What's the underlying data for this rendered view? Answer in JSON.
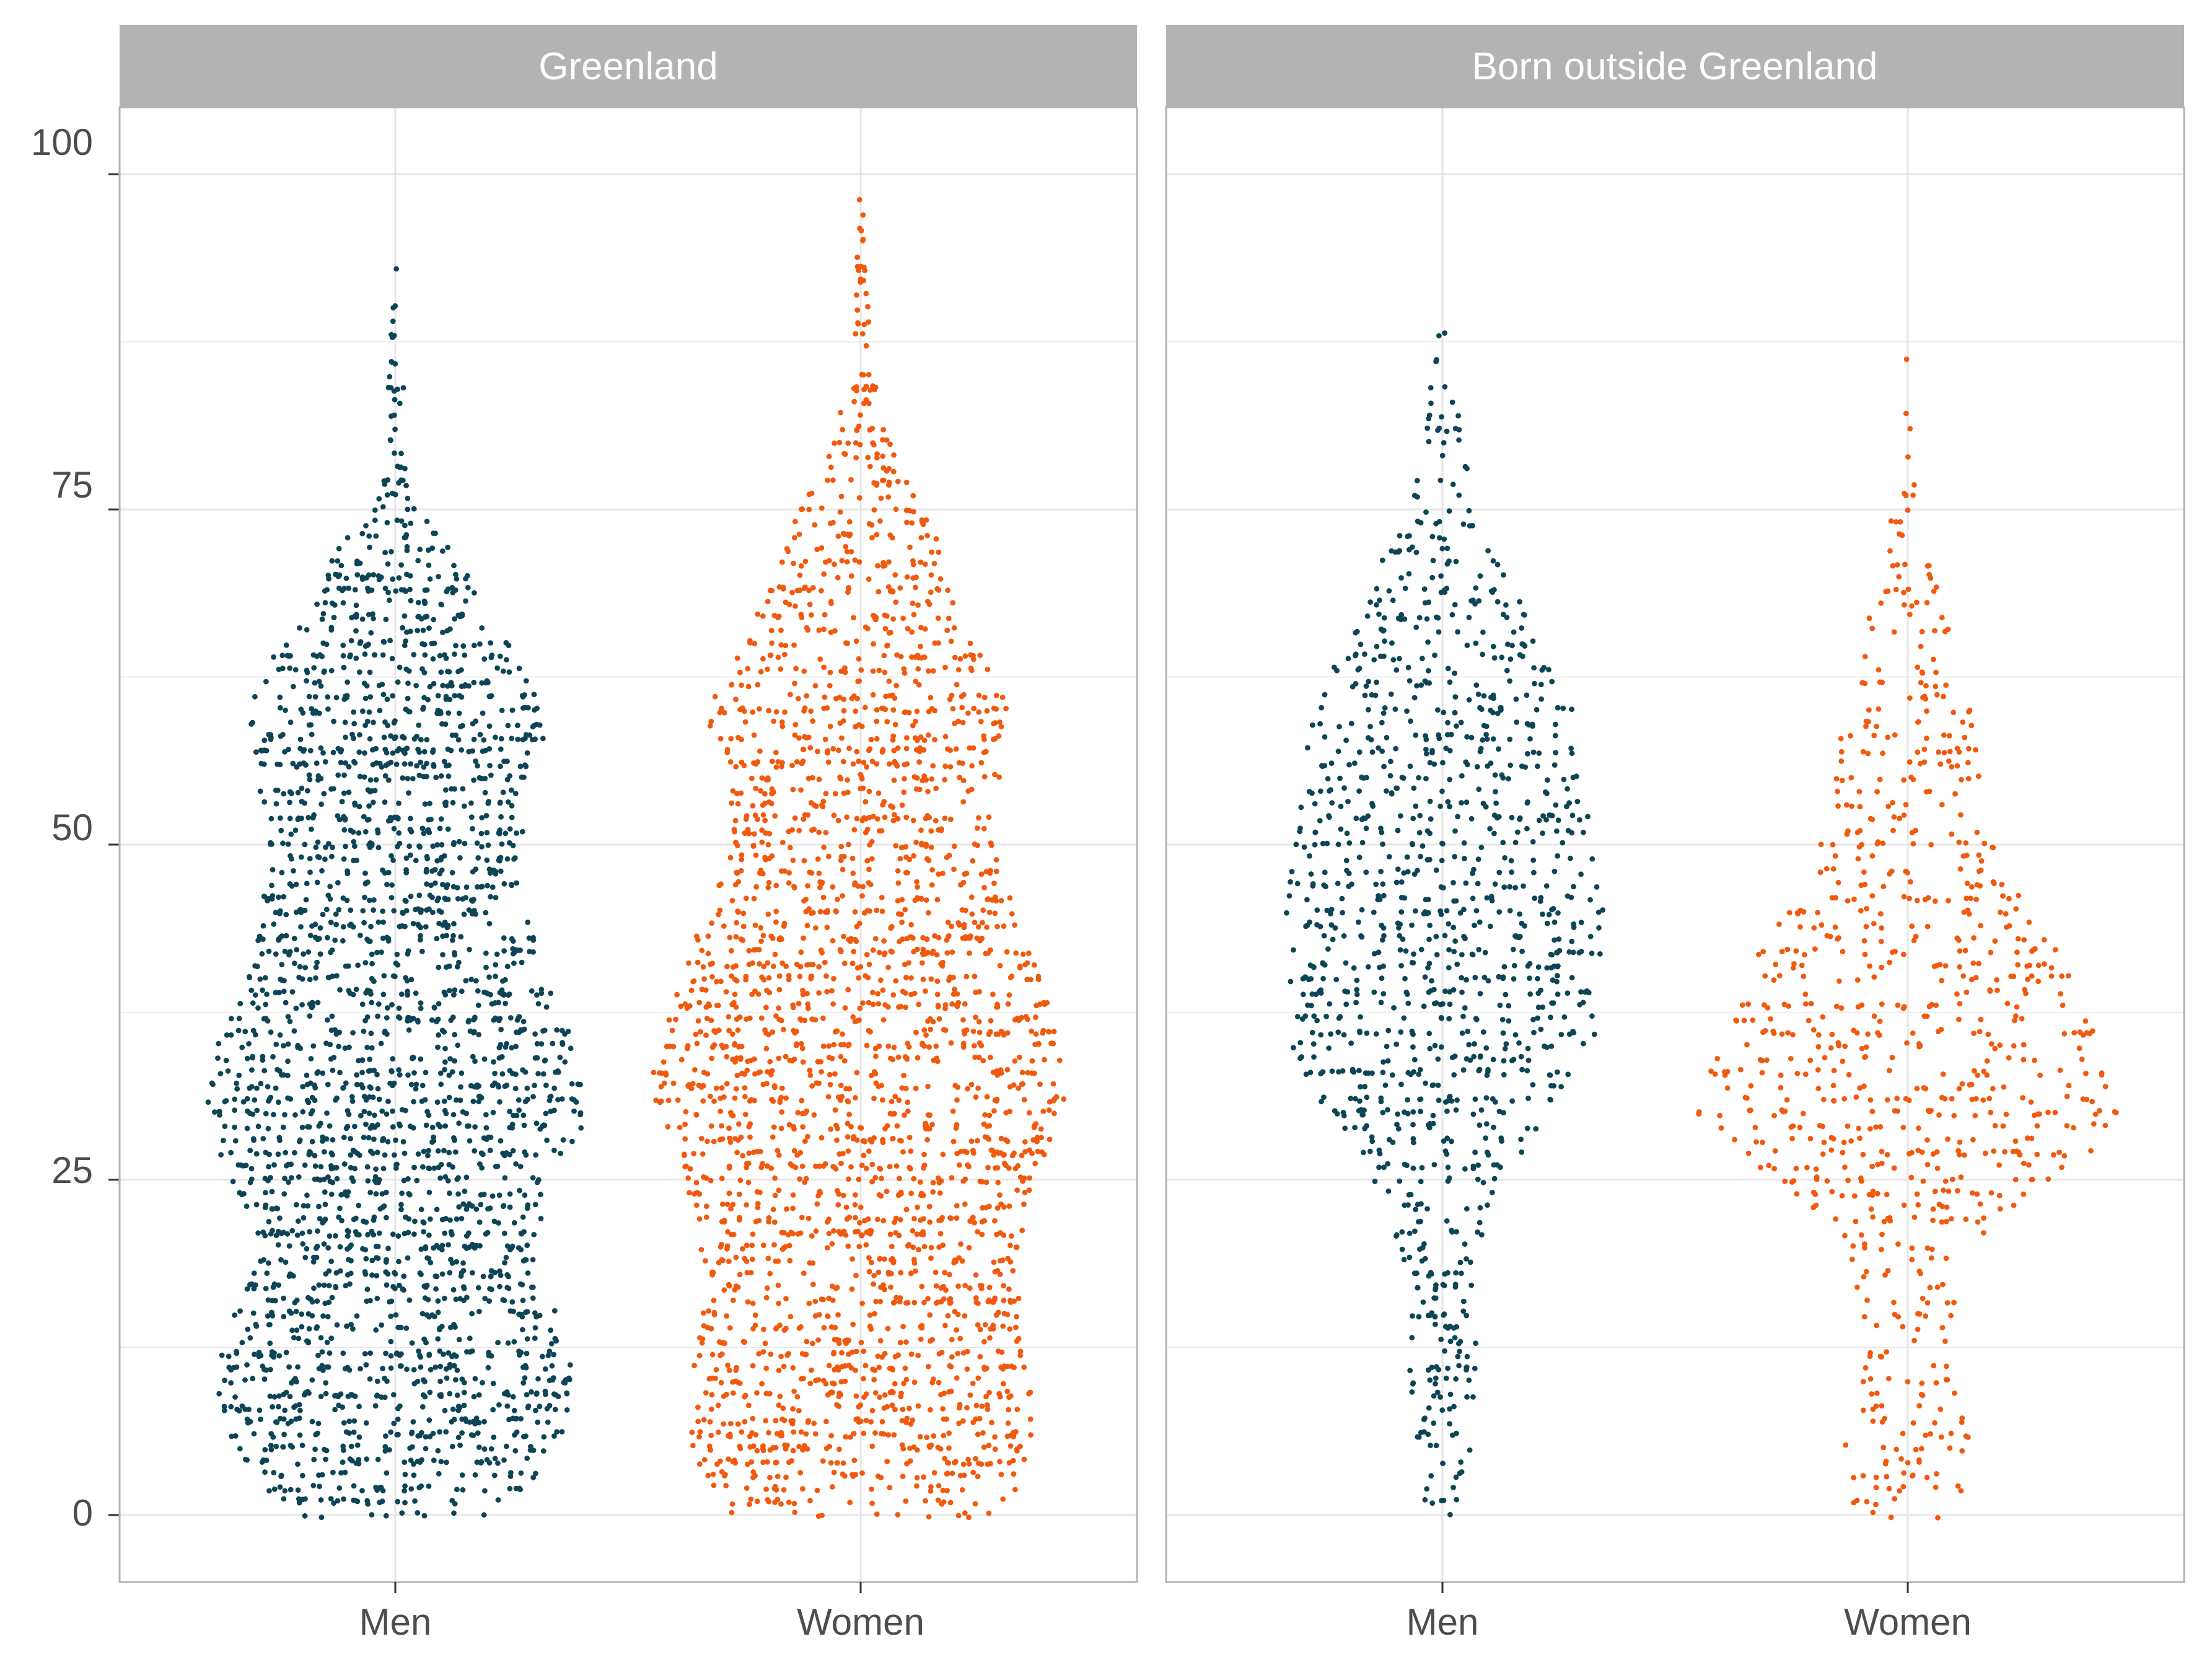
{
  "chart_data": {
    "type": "scatter",
    "subtype": "beeswarm",
    "y_ticks": [
      0,
      25,
      50,
      75,
      100
    ],
    "ylim": [
      -5,
      105
    ],
    "grid": true,
    "legend": "none",
    "colors": {
      "Men": "#0d4556",
      "Women": "#f05a0f"
    },
    "facets": [
      {
        "strip_label": "Greenland",
        "categories": [
          "Men",
          "Women"
        ],
        "groups": [
          {
            "category": "Men",
            "color": "#0d4556",
            "min": 0,
            "max": 94,
            "n_points": 2600,
            "density_profile": [
              [
                0,
                0.5
              ],
              [
                3,
                0.8
              ],
              [
                8,
                0.95
              ],
              [
                13,
                0.92
              ],
              [
                16,
                0.8
              ],
              [
                20,
                0.72
              ],
              [
                25,
                0.85
              ],
              [
                30,
                1.0
              ],
              [
                35,
                0.95
              ],
              [
                40,
                0.8
              ],
              [
                45,
                0.7
              ],
              [
                50,
                0.68
              ],
              [
                55,
                0.72
              ],
              [
                58,
                0.8
              ],
              [
                62,
                0.72
              ],
              [
                66,
                0.55
              ],
              [
                70,
                0.38
              ],
              [
                73,
                0.25
              ],
              [
                76,
                0.1
              ],
              [
                80,
                0.06
              ],
              [
                88,
                0.03
              ],
              [
                94,
                0.01
              ]
            ]
          },
          {
            "category": "Women",
            "color": "#f05a0f",
            "min": 0,
            "max": 98,
            "n_points": 2600,
            "density_profile": [
              [
                0,
                0.6
              ],
              [
                3,
                0.82
              ],
              [
                8,
                0.82
              ],
              [
                13,
                0.8
              ],
              [
                16,
                0.77
              ],
              [
                20,
                0.77
              ],
              [
                25,
                0.84
              ],
              [
                30,
                0.98
              ],
              [
                33,
                1.0
              ],
              [
                38,
                0.9
              ],
              [
                43,
                0.8
              ],
              [
                48,
                0.66
              ],
              [
                52,
                0.64
              ],
              [
                56,
                0.68
              ],
              [
                59,
                0.78
              ],
              [
                62,
                0.66
              ],
              [
                66,
                0.52
              ],
              [
                70,
                0.42
              ],
              [
                74,
                0.34
              ],
              [
                78,
                0.2
              ],
              [
                82,
                0.1
              ],
              [
                86,
                0.05
              ],
              [
                92,
                0.03
              ],
              [
                98,
                0.01
              ]
            ]
          }
        ]
      },
      {
        "strip_label": "Born outside Greenland",
        "categories": [
          "Men",
          "Women"
        ],
        "groups": [
          {
            "category": "Men",
            "color": "#0d4556",
            "min": 0,
            "max": 92,
            "n_points": 1150,
            "density_profile": [
              [
                0,
                0.1
              ],
              [
                5,
                0.18
              ],
              [
                10,
                0.22
              ],
              [
                15,
                0.22
              ],
              [
                20,
                0.28
              ],
              [
                25,
                0.4
              ],
              [
                30,
                0.72
              ],
              [
                35,
                0.95
              ],
              [
                40,
                0.96
              ],
              [
                45,
                1.0
              ],
              [
                50,
                0.92
              ],
              [
                55,
                0.88
              ],
              [
                60,
                0.8
              ],
              [
                65,
                0.6
              ],
              [
                70,
                0.4
              ],
              [
                75,
                0.2
              ],
              [
                80,
                0.12
              ],
              [
                86,
                0.06
              ],
              [
                92,
                0.01
              ]
            ]
          },
          {
            "category": "Women",
            "color": "#f05a0f",
            "min": 0,
            "max": 87,
            "n_points": 800,
            "density_profile": [
              [
                0,
                0.25
              ],
              [
                4,
                0.3
              ],
              [
                8,
                0.28
              ],
              [
                12,
                0.18
              ],
              [
                16,
                0.22
              ],
              [
                20,
                0.3
              ],
              [
                24,
                0.55
              ],
              [
                28,
                0.95
              ],
              [
                30,
                1.0
              ],
              [
                34,
                0.92
              ],
              [
                38,
                0.82
              ],
              [
                42,
                0.72
              ],
              [
                46,
                0.55
              ],
              [
                50,
                0.42
              ],
              [
                55,
                0.36
              ],
              [
                60,
                0.3
              ],
              [
                65,
                0.22
              ],
              [
                70,
                0.12
              ],
              [
                74,
                0.08
              ],
              [
                78,
                0.03
              ],
              [
                87,
                0.01
              ]
            ]
          }
        ]
      }
    ]
  }
}
